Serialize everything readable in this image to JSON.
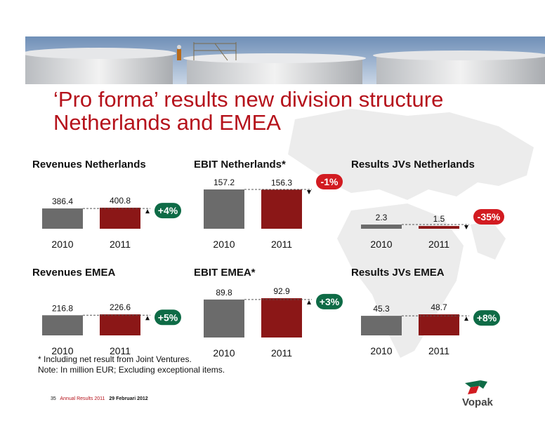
{
  "title_lines": [
    "‘Pro forma’ results new division structure",
    "Netherlands and EMEA"
  ],
  "colors": {
    "bar_2010": "#6b6b6b",
    "bar_2011": "#8b1717",
    "badge_pos": "#0e6b46",
    "badge_neg": "#d21b21",
    "title": "#b5121b"
  },
  "chart_data": [
    {
      "type": "bar",
      "title": "Revenues Netherlands",
      "categories": [
        "2010",
        "2011"
      ],
      "values": [
        386.4,
        400.8
      ],
      "value_labels": [
        "386.4",
        "400.8"
      ],
      "change": "+4%",
      "change_sign": "positive"
    },
    {
      "type": "bar",
      "title": "EBIT Netherlands*",
      "categories": [
        "2010",
        "2011"
      ],
      "values": [
        157.2,
        156.3
      ],
      "value_labels": [
        "157.2",
        "156.3"
      ],
      "change": "-1%",
      "change_sign": "negative"
    },
    {
      "type": "bar",
      "title": "Results JVs Netherlands",
      "categories": [
        "2010",
        "2011"
      ],
      "values": [
        2.3,
        1.5
      ],
      "value_labels": [
        "2.3",
        "1.5"
      ],
      "change": "-35%",
      "change_sign": "negative"
    },
    {
      "type": "bar",
      "title": "Revenues EMEA",
      "categories": [
        "2010",
        "2011"
      ],
      "values": [
        216.8,
        226.6
      ],
      "value_labels": [
        "216.8",
        "226.6"
      ],
      "change": "+5%",
      "change_sign": "positive"
    },
    {
      "type": "bar",
      "title": "EBIT EMEA*",
      "categories": [
        "2010",
        "2011"
      ],
      "values": [
        89.8,
        92.9
      ],
      "value_labels": [
        "89.8",
        "92.9"
      ],
      "change": "+3%",
      "change_sign": "positive"
    },
    {
      "type": "bar",
      "title": "Results JVs EMEA",
      "categories": [
        "2010",
        "2011"
      ],
      "values": [
        45.3,
        48.7
      ],
      "value_labels": [
        "45.3",
        "48.7"
      ],
      "change": "+8%",
      "change_sign": "positive"
    }
  ],
  "footnotes": [
    "* Including net result from Joint Ventures.",
    "Note: In million EUR; Excluding exceptional items."
  ],
  "footer": {
    "page": "35",
    "event": "Annual Results 2011",
    "date": "29 Februari 2012"
  },
  "logo": {
    "text": "Vopak"
  }
}
